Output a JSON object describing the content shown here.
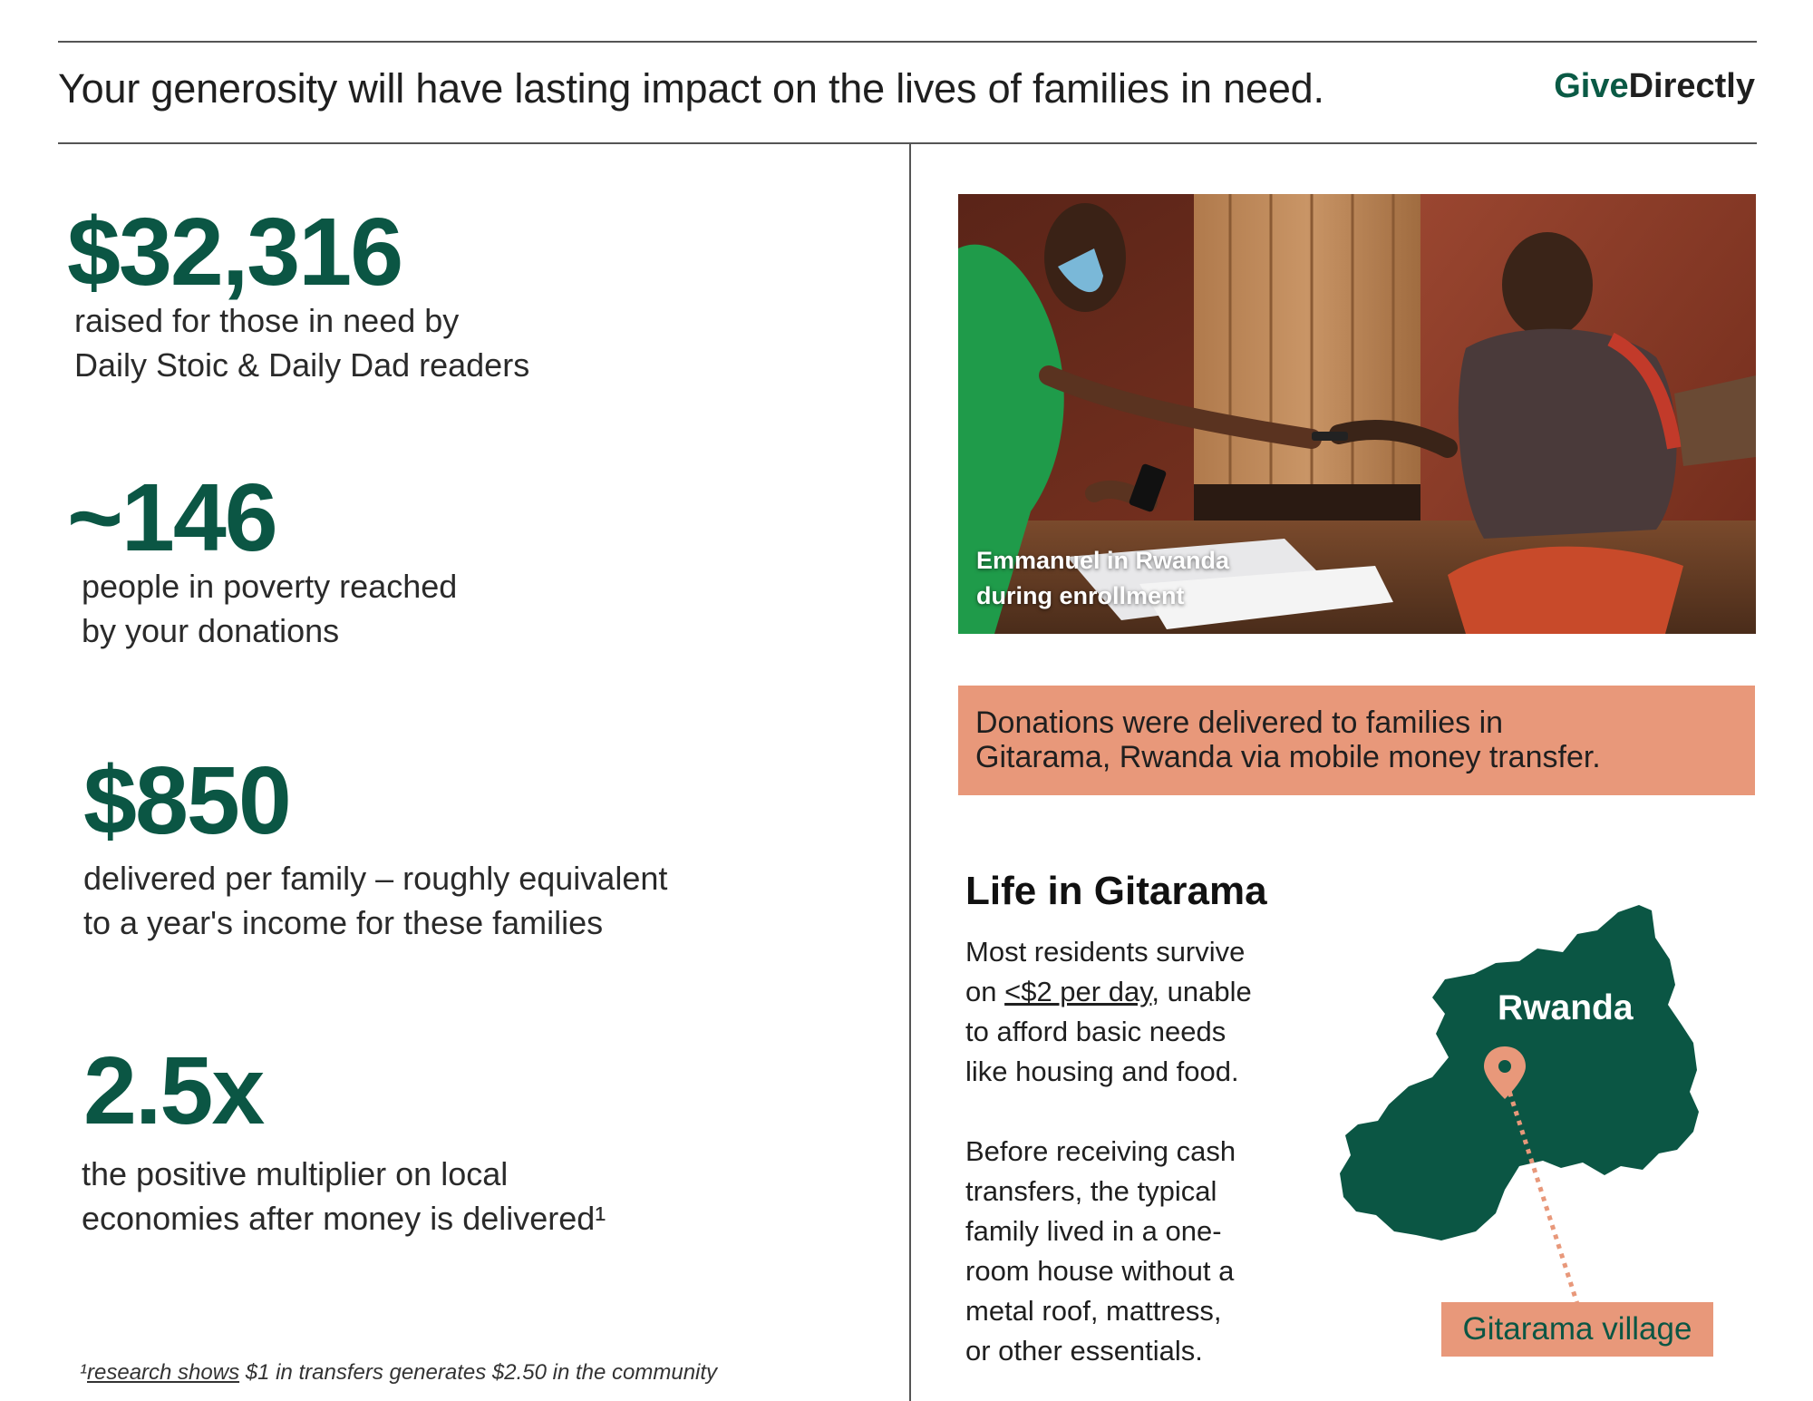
{
  "header": {
    "headline": "Your generosity will have lasting impact on the lives of families in need.",
    "logo": {
      "give": "Give",
      "directly": "Directly"
    }
  },
  "stats": [
    {
      "value": "$32,316",
      "desc": [
        "raised for those in need by",
        "Daily Stoic & Daily Dad readers"
      ]
    },
    {
      "value": "~146",
      "desc": [
        "people in poverty reached",
        "by your donations"
      ]
    },
    {
      "value": "$850",
      "desc": [
        "delivered per family – roughly equivalent",
        "to a year's income for these families"
      ]
    },
    {
      "value": "2.5x",
      "desc": [
        "the positive multiplier on local",
        "economies after money is delivered¹"
      ]
    }
  ],
  "footnote": {
    "marker": "¹",
    "link": "research shows",
    "rest": " $1 in transfers generates $2.50 in the community"
  },
  "photo": {
    "caption": [
      "Emmanuel in Rwanda",
      "during enrollment"
    ]
  },
  "banner": {
    "lines": [
      "Donations were delivered to families in",
      "Gitarama, Rwanda via mobile money transfer."
    ]
  },
  "life": {
    "title": "Life in Gitarama",
    "p1_line1": "Most residents survive",
    "p1_line2_pre": "on ",
    "p1_line2_link": "<$2 per day",
    "p1_line2_post": ", unable",
    "p1_line3": "to afford basic needs",
    "p1_line4": "like housing and food.",
    "p2": [
      "Before receiving cash",
      "transfers, the typical",
      "family lived in a one-",
      "room house without a",
      "metal roof, mattress,",
      "or other essentials."
    ]
  },
  "map": {
    "country": "Rwanda",
    "village": "Gitarama village",
    "icon": "location-pin-icon"
  },
  "colors": {
    "brand_green": "#0b5644",
    "accent_salmon": "#e8987a"
  }
}
